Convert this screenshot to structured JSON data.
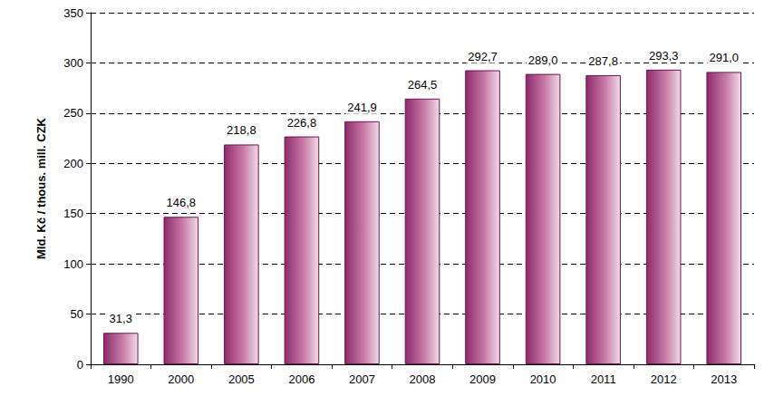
{
  "chart_data": {
    "type": "bar",
    "y_label": "Mld. Kč / thous. mill. CZK",
    "categories": [
      "1990",
      "2000",
      "2005",
      "2006",
      "2007",
      "2008",
      "2009",
      "2010",
      "2011",
      "2012",
      "2013"
    ],
    "values": [
      31.3,
      146.8,
      218.8,
      226.8,
      241.9,
      264.5,
      292.7,
      289.0,
      287.8,
      293.3,
      291.0
    ],
    "value_labels": [
      "31,3",
      "146,8",
      "218,8",
      "226,8",
      "241,9",
      "264,5",
      "292,7",
      "289,0",
      "287,8",
      "293,3",
      "291,0"
    ],
    "color": "#8e2a6b",
    "ylim": [
      0,
      350
    ],
    "yticks": [
      0,
      50,
      100,
      150,
      200,
      250,
      300,
      350
    ],
    "grid": true,
    "data_labels": true
  }
}
